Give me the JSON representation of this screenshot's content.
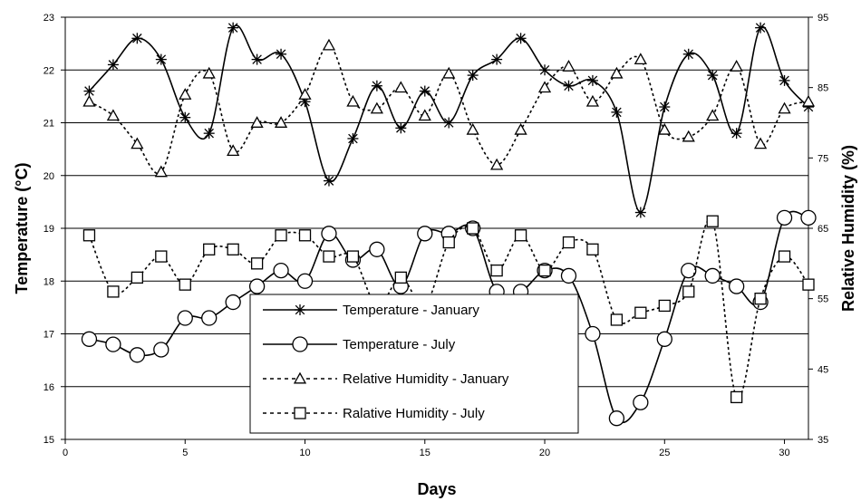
{
  "chart_data": {
    "type": "line",
    "xlabel": "Days",
    "ylabel_left": "Temperature (°C)",
    "ylabel_right": "Relative Humidity (%)",
    "xlim": [
      0,
      31
    ],
    "ylim_left": [
      15,
      23
    ],
    "ylim_right": [
      35,
      95
    ],
    "x_ticks": [
      0,
      5,
      10,
      15,
      20,
      25,
      30
    ],
    "y_ticks_left": [
      15,
      16,
      17,
      18,
      19,
      20,
      21,
      22,
      23
    ],
    "y_ticks_right": [
      35,
      45,
      55,
      65,
      75,
      85,
      95
    ],
    "grid": "horizontal",
    "legend_position": "bottom-center",
    "x": [
      1,
      2,
      3,
      4,
      5,
      6,
      7,
      8,
      9,
      10,
      11,
      12,
      13,
      14,
      15,
      16,
      17,
      18,
      19,
      20,
      21,
      22,
      23,
      24,
      25,
      26,
      27,
      28,
      29,
      30,
      31
    ],
    "series": [
      {
        "name": "Temperature - January",
        "axis": "left",
        "line": "solid",
        "marker": "star",
        "values": [
          21.6,
          22.1,
          22.6,
          22.2,
          21.1,
          20.8,
          22.8,
          22.2,
          22.3,
          21.4,
          19.9,
          20.7,
          21.7,
          20.9,
          21.6,
          21.0,
          21.9,
          22.2,
          22.6,
          22.0,
          21.7,
          21.8,
          21.2,
          19.3,
          21.3,
          22.3,
          21.9,
          20.8,
          22.8,
          21.8,
          21.3
        ]
      },
      {
        "name": "Temperature - July",
        "axis": "left",
        "line": "solid",
        "marker": "circle",
        "values": [
          16.9,
          16.8,
          16.6,
          16.7,
          17.3,
          17.3,
          17.6,
          17.9,
          18.2,
          18.0,
          18.9,
          18.4,
          18.6,
          17.9,
          18.9,
          18.9,
          19.0,
          17.8,
          17.8,
          18.2,
          18.1,
          17.0,
          15.4,
          15.7,
          16.9,
          18.2,
          18.1,
          17.9,
          17.6,
          19.2,
          19.2
        ]
      },
      {
        "name": "Relative Humidity - January",
        "axis": "right",
        "line": "dashed",
        "marker": "triangle",
        "values": [
          83,
          81,
          77,
          73,
          84,
          87,
          76,
          80,
          80,
          84,
          91,
          83,
          82,
          85,
          81,
          87,
          79,
          74,
          79,
          85,
          88,
          83,
          87,
          89,
          79,
          78,
          81,
          88,
          77,
          82,
          83
        ]
      },
      {
        "name": "Ralative Humidity - July",
        "axis": "right",
        "line": "dashed",
        "marker": "square",
        "values": [
          64,
          56,
          58,
          61,
          57,
          62,
          62,
          60,
          64,
          64,
          61,
          61,
          54,
          58,
          54,
          63,
          65,
          59,
          64,
          59,
          63,
          62,
          52,
          53,
          54,
          56,
          66,
          41,
          55,
          61,
          57
        ]
      }
    ]
  }
}
